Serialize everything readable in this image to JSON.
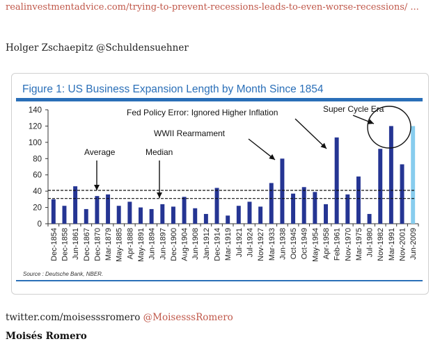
{
  "source_link": "realinvestmentadvice.com/trying-to-prevent-recessions-leads-to-even-worse-recessions/ ...",
  "author_line": "Holger Zschaepitz @Schuldensuehner",
  "footer": {
    "twitter_url": "twitter.com/moisesssromero",
    "twitter_handle": "@MoisesssRomero",
    "name": "Moisés Romero"
  },
  "colors": {
    "bar": "#253593",
    "highlight_bar": "#87cdee",
    "title": "#2a6fb8",
    "link": "#c0584a"
  },
  "chart_data": {
    "type": "bar",
    "title": "Figure 1: US Business Expansion Length by Month Since 1854",
    "source": "Source : Deutsche Bank, NBER.",
    "ylim": [
      0,
      140
    ],
    "yticks": [
      0,
      20,
      40,
      60,
      80,
      100,
      120,
      140
    ],
    "categories": [
      "Dec-1854",
      "Dec-1858",
      "Jun-1861",
      "Dec-1867",
      "Dec-1870",
      "Mar-1879",
      "May-1885",
      "Apr-1888",
      "May-1891",
      "Jun-1894",
      "Jun-1897",
      "Dec-1900",
      "Aug-1904",
      "Jun-1908",
      "Jan-1912",
      "Dec-1914",
      "Mar-1919",
      "Jul-1921",
      "Jul-1924",
      "Nov-1927",
      "Mar-1933",
      "Jun-1938",
      "Oct-1945",
      "Oct-1949",
      "May-1954",
      "Apr-1958",
      "Feb-1961",
      "Nov-1970",
      "Mar-1975",
      "Jul-1980",
      "Nov-1982",
      "Mar-1991",
      "Nov-2001",
      "Jun-2009"
    ],
    "values": [
      30,
      22,
      46,
      18,
      34,
      36,
      22,
      27,
      20,
      18,
      24,
      21,
      33,
      19,
      12,
      44,
      10,
      22,
      27,
      21,
      50,
      80,
      37,
      45,
      39,
      24,
      106,
      36,
      58,
      12,
      92,
      120,
      73,
      120
    ],
    "highlight_index": 33,
    "reference_lines": [
      {
        "name": "Average",
        "value": 41
      },
      {
        "name": "Median",
        "value": 31
      }
    ],
    "annotations": [
      "Average",
      "Median",
      "WWII Rearmament",
      "Fed Policy Error: Ignored Higher Inflation",
      "Super Cycle Era"
    ]
  }
}
